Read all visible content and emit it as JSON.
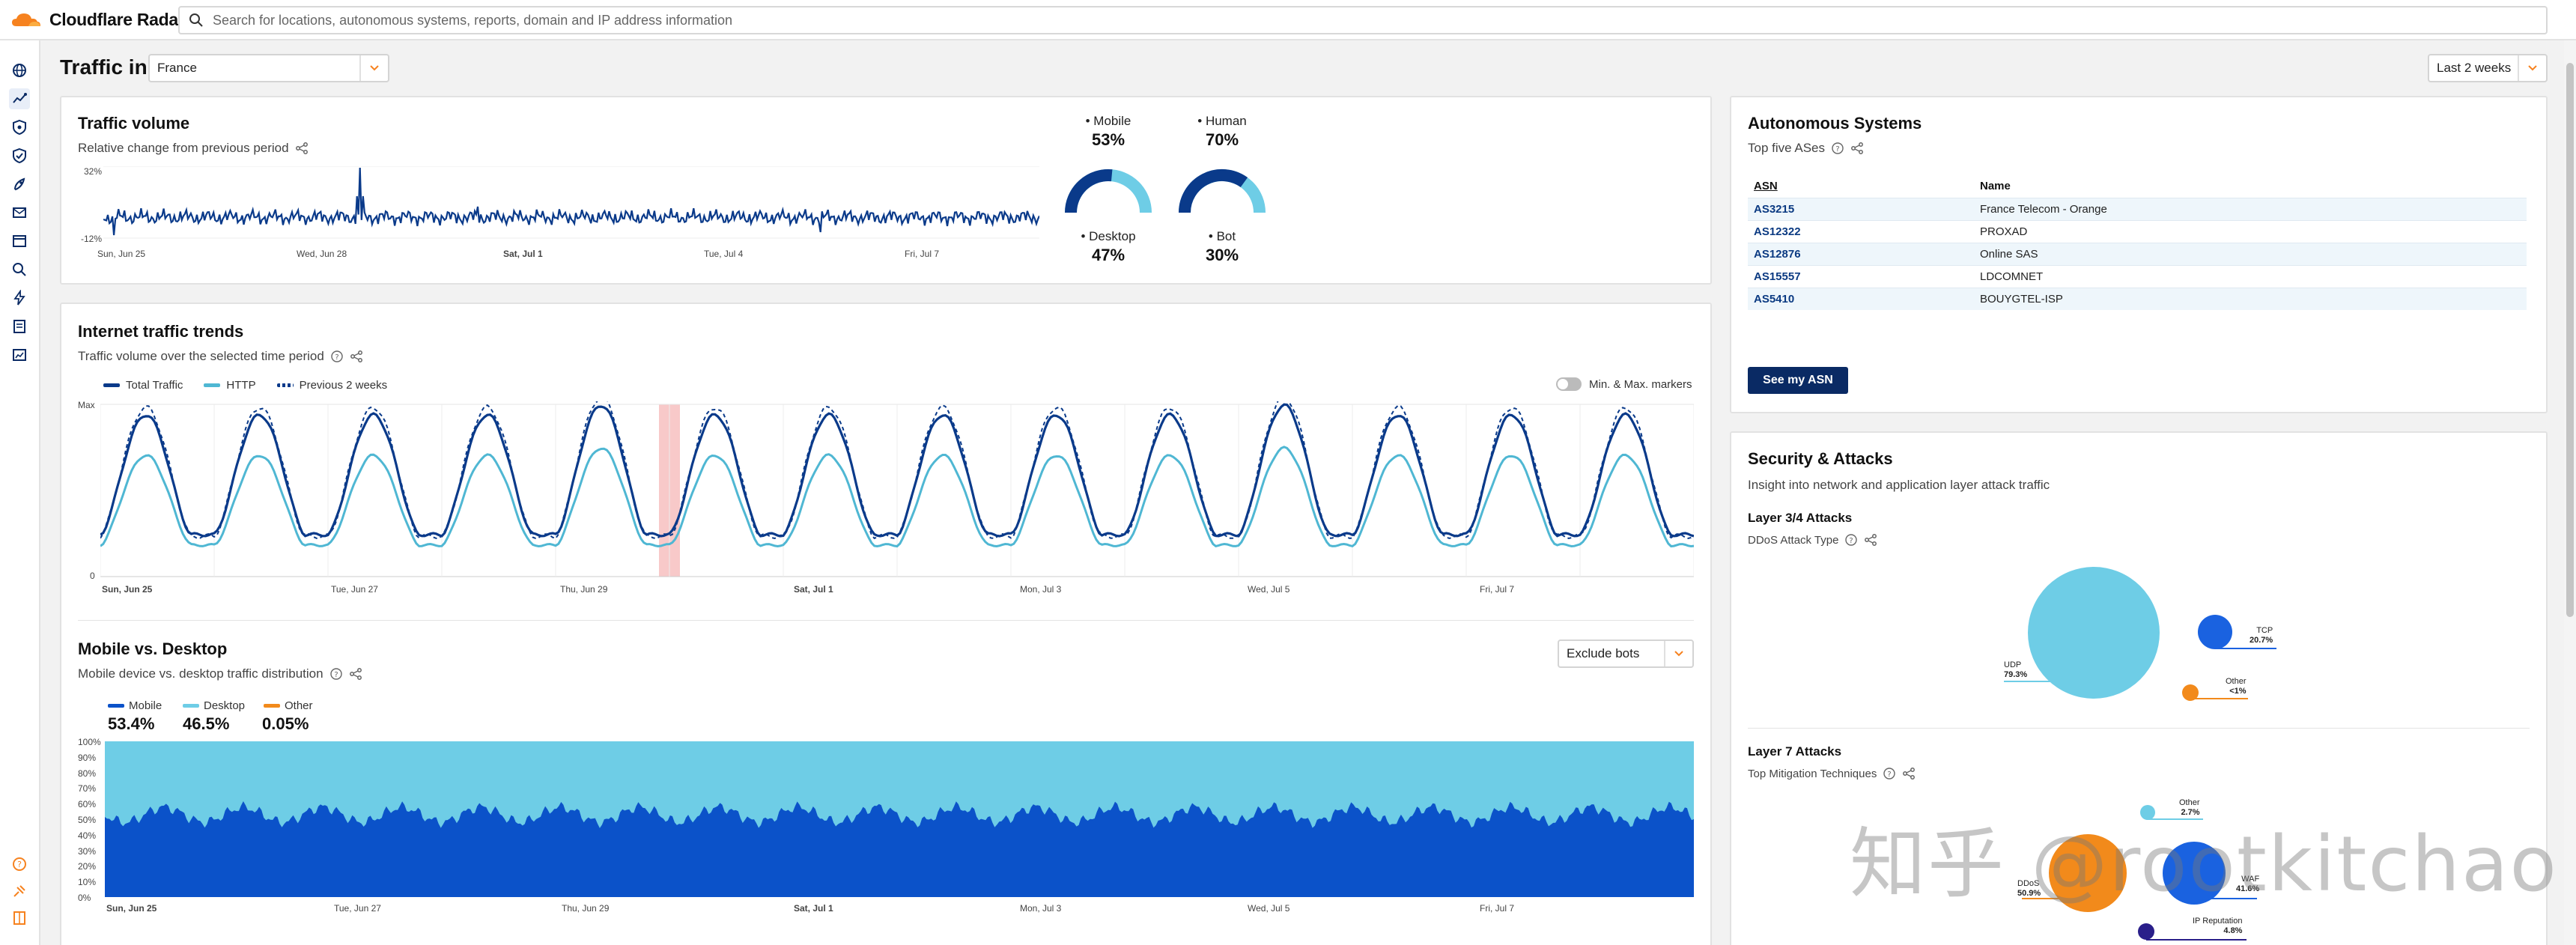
{
  "app": {
    "logo_text": "Cloudflare Radar",
    "search_placeholder": "Search for locations, autonomous systems, reports, domain and IP address information"
  },
  "colors": {
    "cloudflare_orange": "#f6821f",
    "navy": "#0a2a64",
    "traffic_dark": "#0a3a8a",
    "http_teal": "#4fb7d3",
    "mobile_blue": "#0b52c9",
    "desktop_light": "#6ecde6",
    "other_orange": "#f28a1b",
    "highlight_pink": "#f8c9c9"
  },
  "sidebar": {
    "items": [
      {
        "icon": "globe-icon"
      },
      {
        "icon": "traffic-icon"
      },
      {
        "icon": "shield-check-icon"
      },
      {
        "icon": "shield-icon"
      },
      {
        "icon": "rocket-icon"
      },
      {
        "icon": "mail-icon"
      },
      {
        "icon": "browser-icon"
      },
      {
        "icon": "search-icon"
      },
      {
        "icon": "bolt-icon"
      },
      {
        "icon": "report-icon"
      },
      {
        "icon": "chart-icon"
      }
    ],
    "bottom_items": [
      {
        "icon": "help-icon"
      },
      {
        "icon": "api-icon"
      },
      {
        "icon": "book-icon"
      }
    ]
  },
  "header": {
    "title": "Traffic in",
    "location_value": "France",
    "range_value": "Last 2 weeks"
  },
  "traffic_volume": {
    "title": "Traffic volume",
    "subtitle": "Relative change from previous period",
    "y_max_label": "32%",
    "y_min_label": "-12%",
    "x_labels": [
      "Sun, Jun 25",
      "Wed, Jun 28",
      "Sat, Jul 1",
      "Tue, Jul 4",
      "Fri, Jul 7"
    ],
    "gauges": [
      {
        "label": "Mobile",
        "value": "53%",
        "fraction": 0.53
      },
      {
        "label": "Human",
        "value": "70%",
        "fraction": 0.7
      },
      {
        "label": "Desktop",
        "value": "47%"
      },
      {
        "label": "Bot",
        "value": "30%"
      }
    ]
  },
  "internet_trends": {
    "title": "Internet traffic trends",
    "subtitle": "Traffic volume over the selected time period",
    "legend": [
      "Total Traffic",
      "HTTP",
      "Previous 2 weeks"
    ],
    "toggle_label": "Min. & Max. markers",
    "y_max_label": "Max",
    "y_min_label": "0",
    "x_labels": [
      "Sun, Jun 25",
      "Tue, Jun 27",
      "Thu, Jun 29",
      "Sat, Jul 1",
      "Mon, Jul 3",
      "Wed, Jul 5",
      "Fri, Jul 7"
    ]
  },
  "mobile_desktop": {
    "title": "Mobile vs. Desktop",
    "subtitle": "Mobile device vs. desktop traffic distribution",
    "filter_value": "Exclude bots",
    "legend": [
      {
        "label": "Mobile",
        "value": "53.4%"
      },
      {
        "label": "Desktop",
        "value": "46.5%"
      },
      {
        "label": "Other",
        "value": "0.05%"
      }
    ],
    "y_labels": [
      "100%",
      "90%",
      "80%",
      "70%",
      "60%",
      "50%",
      "40%",
      "30%",
      "20%",
      "10%",
      "0%"
    ],
    "x_labels": [
      "Sun, Jun 25",
      "Tue, Jun 27",
      "Thu, Jun 29",
      "Sat, Jul 1",
      "Mon, Jul 3",
      "Wed, Jul 5",
      "Fri, Jul 7"
    ]
  },
  "asn": {
    "title": "Autonomous Systems",
    "subtitle": "Top five ASes",
    "col_asn": "ASN",
    "col_name": "Name",
    "rows": [
      {
        "asn": "AS3215",
        "name": "France Telecom - Orange"
      },
      {
        "asn": "AS12322",
        "name": "PROXAD"
      },
      {
        "asn": "AS12876",
        "name": "Online SAS"
      },
      {
        "asn": "AS15557",
        "name": "LDCOMNET"
      },
      {
        "asn": "AS5410",
        "name": "BOUYGTEL-ISP"
      }
    ],
    "button_label": "See my ASN"
  },
  "security": {
    "title": "Security & Attacks",
    "subtitle": "Insight into network and application layer attack traffic",
    "layer34": {
      "title": "Layer 3/4 Attacks",
      "subtitle": "DDoS Attack Type",
      "items": [
        {
          "label": "UDP",
          "value": "79.3%"
        },
        {
          "label": "TCP",
          "value": "20.7%"
        },
        {
          "label": "Other",
          "value": "<1%"
        }
      ]
    },
    "layer7": {
      "title": "Layer 7 Attacks",
      "subtitle": "Top Mitigation Techniques",
      "items": [
        {
          "label": "Other",
          "value": "2.7%"
        },
        {
          "label": "DDoS",
          "value": "50.9%"
        },
        {
          "label": "WAF",
          "value": "41.6%"
        },
        {
          "label": "IP Reputation",
          "value": "4.8%"
        }
      ]
    }
  },
  "watermark": "知乎 @rootkitchao"
}
